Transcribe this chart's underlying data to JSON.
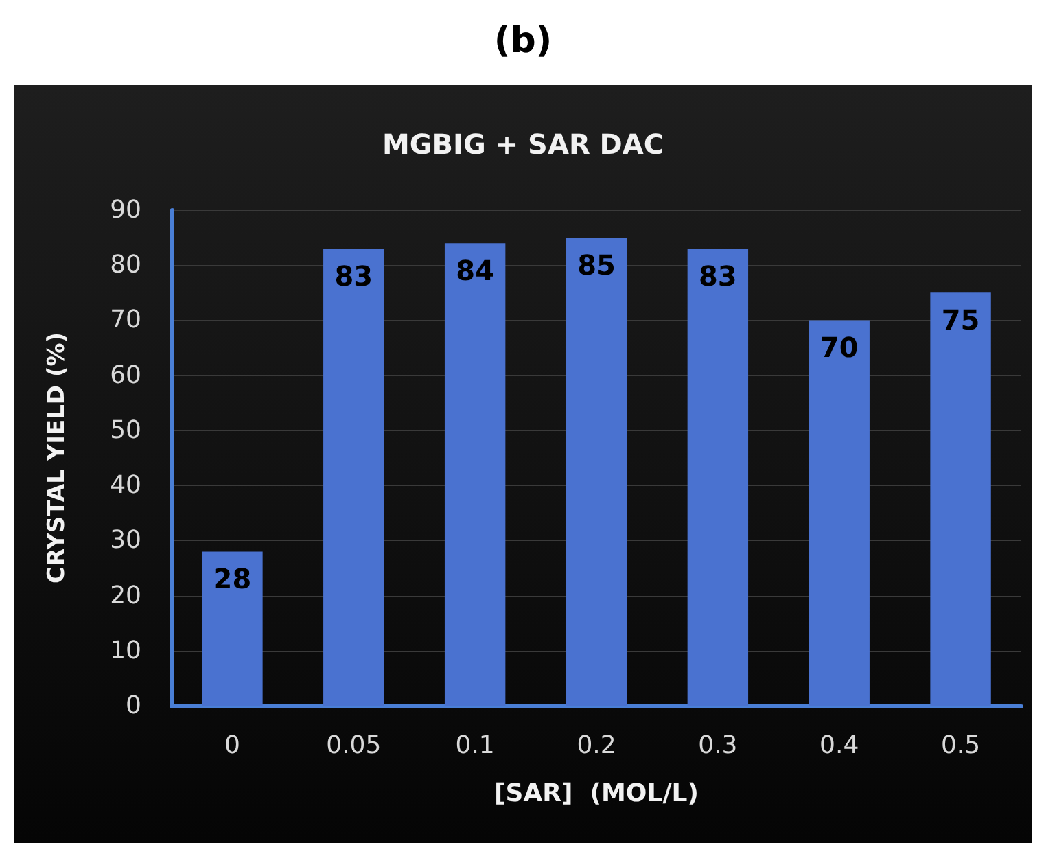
{
  "chart_data": {
    "type": "bar",
    "title": "(b)",
    "subtitle": "MGBIG + SAR DAC",
    "xlabel": "[SAR]  (MOL/L)",
    "ylabel": "CRYSTAL YIELD (%)",
    "categories": [
      "0",
      "0.05",
      "0.1",
      "0.2",
      "0.3",
      "0.4",
      "0.5"
    ],
    "values": [
      28,
      83,
      84,
      85,
      83,
      70,
      75
    ],
    "color": "#4a72d0",
    "ylim": [
      0,
      90
    ],
    "yticks": [
      0,
      10,
      20,
      30,
      40,
      50,
      60,
      70,
      80,
      90
    ],
    "grid": "y",
    "data_labels": true
  }
}
